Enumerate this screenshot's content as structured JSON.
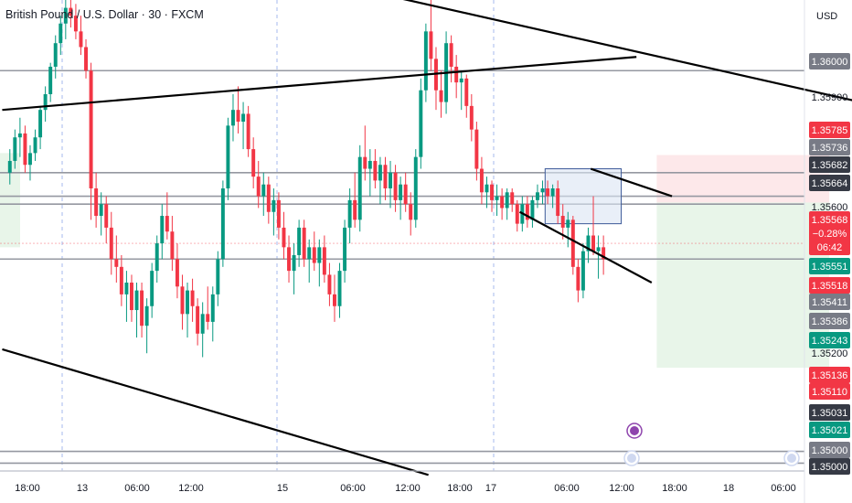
{
  "header": {
    "title": "British Pound / U.S. Dollar · 30 · FXCM",
    "currency": "USD"
  },
  "colors": {
    "up": "#089981",
    "down": "#f23645",
    "trendline": "#000000",
    "hline": "#9598a1",
    "box_border": "#3d5a99",
    "box_fill": "#dbe4f4",
    "target_zone": "#e8f5e9",
    "stop_zone": "#fde8ea",
    "left_zone": "#e8f5e9",
    "session_line": "#6a8de0"
  },
  "chart_data": {
    "type": "candlestick",
    "symbol": "GBPUSD",
    "timeframe": "30",
    "x_ticks": [
      "18:00",
      "13",
      "06:00",
      "12:00",
      "15",
      "06:00",
      "12:00",
      "18:00",
      "17",
      "06:00",
      "12:00",
      "18:00",
      "18",
      "06:00"
    ],
    "y_ticks": [
      1.35,
      1.352,
      1.356,
      1.359,
      1.36
    ],
    "y_range": [
      1.3498,
      1.3618
    ],
    "horizontal_levels": [
      1.36,
      1.3574,
      1.3568,
      1.3566,
      1.3552,
      1.3503,
      1.35,
      1.3498
    ],
    "price_labels": [
      {
        "text": "1.36000",
        "kind": "gray"
      },
      {
        "text": "1.35900",
        "kind": "plain"
      },
      {
        "text": "1.35785",
        "kind": "red"
      },
      {
        "text": "1.35736",
        "kind": "gray"
      },
      {
        "text": "1.35682",
        "kind": "dark"
      },
      {
        "text": "1.35664",
        "kind": "dark"
      },
      {
        "text": "1.35600",
        "kind": "plain"
      },
      {
        "text": "1.35568",
        "kind": "red"
      },
      {
        "text": "−0.28%",
        "kind": "red"
      },
      {
        "text": "06:42",
        "kind": "red"
      },
      {
        "text": "1.35551",
        "kind": "green"
      },
      {
        "text": "1.35518",
        "kind": "red"
      },
      {
        "text": "1.35411",
        "kind": "gray"
      },
      {
        "text": "1.35386",
        "kind": "gray"
      },
      {
        "text": "1.35243",
        "kind": "green"
      },
      {
        "text": "1.35200",
        "kind": "plain"
      },
      {
        "text": "1.35136",
        "kind": "red"
      },
      {
        "text": "1.35110",
        "kind": "red"
      },
      {
        "text": "1.35031",
        "kind": "dark"
      },
      {
        "text": "1.35021",
        "kind": "green"
      },
      {
        "text": "1.35000",
        "kind": "gray"
      },
      {
        "text": "1.35000",
        "kind": "dark"
      }
    ],
    "candles": [
      [
        1.3574,
        1.358,
        1.3571,
        1.3577
      ],
      [
        1.3577,
        1.3585,
        1.3575,
        1.3583
      ],
      [
        1.3583,
        1.3588,
        1.3578,
        1.3584
      ],
      [
        1.3584,
        1.3586,
        1.3574,
        1.3576
      ],
      [
        1.3576,
        1.3581,
        1.3572,
        1.3579
      ],
      [
        1.3579,
        1.3585,
        1.3577,
        1.3583
      ],
      [
        1.3583,
        1.3591,
        1.358,
        1.359
      ],
      [
        1.359,
        1.3596,
        1.3587,
        1.3594
      ],
      [
        1.3594,
        1.3602,
        1.3592,
        1.3601
      ],
      [
        1.3601,
        1.3609,
        1.3598,
        1.3607
      ],
      [
        1.3607,
        1.3614,
        1.3604,
        1.3612
      ],
      [
        1.3612,
        1.3618,
        1.3608,
        1.3616
      ],
      [
        1.3616,
        1.3618,
        1.3611,
        1.3614
      ],
      [
        1.3614,
        1.3617,
        1.3608,
        1.361
      ],
      [
        1.361,
        1.3614,
        1.3604,
        1.3606
      ],
      [
        1.3606,
        1.3608,
        1.3598,
        1.36
      ],
      [
        1.36,
        1.3602,
        1.3562,
        1.357
      ],
      [
        1.357,
        1.3574,
        1.356,
        1.3563
      ],
      [
        1.3563,
        1.3569,
        1.3558,
        1.3566
      ],
      [
        1.3566,
        1.3568,
        1.3556,
        1.356
      ],
      [
        1.356,
        1.3564,
        1.3548,
        1.3552
      ],
      [
        1.3552,
        1.3558,
        1.3546,
        1.355
      ],
      [
        1.355,
        1.3553,
        1.354,
        1.3543
      ],
      [
        1.3543,
        1.3549,
        1.3536,
        1.3546
      ],
      [
        1.3546,
        1.3548,
        1.3536,
        1.3539
      ],
      [
        1.3539,
        1.3546,
        1.3532,
        1.3544
      ],
      [
        1.3544,
        1.3546,
        1.3532,
        1.3535
      ],
      [
        1.3535,
        1.3542,
        1.3528,
        1.354
      ],
      [
        1.354,
        1.3551,
        1.3537,
        1.3549
      ],
      [
        1.3549,
        1.3558,
        1.3546,
        1.3556
      ],
      [
        1.3556,
        1.3566,
        1.3552,
        1.3563
      ],
      [
        1.3563,
        1.3569,
        1.3557,
        1.3559
      ],
      [
        1.3559,
        1.3563,
        1.3549,
        1.3552
      ],
      [
        1.3552,
        1.3556,
        1.3542,
        1.3545
      ],
      [
        1.3545,
        1.3548,
        1.3534,
        1.3538
      ],
      [
        1.3538,
        1.3546,
        1.3532,
        1.3544
      ],
      [
        1.3544,
        1.3547,
        1.3536,
        1.354
      ],
      [
        1.354,
        1.3542,
        1.353,
        1.3533
      ],
      [
        1.3533,
        1.3541,
        1.3527,
        1.3538
      ],
      [
        1.3538,
        1.3545,
        1.3534,
        1.3536
      ],
      [
        1.3536,
        1.3545,
        1.3531,
        1.3543
      ],
      [
        1.3543,
        1.3554,
        1.354,
        1.3552
      ],
      [
        1.3552,
        1.3572,
        1.355,
        1.357
      ],
      [
        1.357,
        1.3588,
        1.3567,
        1.3586
      ],
      [
        1.3586,
        1.3594,
        1.3582,
        1.359
      ],
      [
        1.359,
        1.3596,
        1.3584,
        1.3587
      ],
      [
        1.3587,
        1.3592,
        1.358,
        1.3589
      ],
      [
        1.3589,
        1.3591,
        1.3578,
        1.358
      ],
      [
        1.358,
        1.3583,
        1.357,
        1.3573
      ],
      [
        1.3573,
        1.3577,
        1.3565,
        1.3568
      ],
      [
        1.3568,
        1.3574,
        1.3563,
        1.3571
      ],
      [
        1.3571,
        1.3573,
        1.3561,
        1.3564
      ],
      [
        1.3564,
        1.357,
        1.3558,
        1.3567
      ],
      [
        1.3567,
        1.3569,
        1.3557,
        1.356
      ],
      [
        1.356,
        1.3564,
        1.3552,
        1.3555
      ],
      [
        1.3555,
        1.3558,
        1.3546,
        1.3549
      ],
      [
        1.3549,
        1.3556,
        1.3543,
        1.3553
      ],
      [
        1.3553,
        1.3562,
        1.355,
        1.356
      ],
      [
        1.356,
        1.3562,
        1.355,
        1.3552
      ],
      [
        1.3552,
        1.3557,
        1.3546,
        1.3555
      ],
      [
        1.3555,
        1.3559,
        1.3549,
        1.3551
      ],
      [
        1.3551,
        1.3557,
        1.3545,
        1.3555
      ],
      [
        1.3555,
        1.3558,
        1.3546,
        1.3548
      ],
      [
        1.3548,
        1.3551,
        1.354,
        1.3543
      ],
      [
        1.3543,
        1.3548,
        1.3536,
        1.354
      ],
      [
        1.354,
        1.3551,
        1.3537,
        1.3549
      ],
      [
        1.3549,
        1.3562,
        1.3546,
        1.356
      ],
      [
        1.356,
        1.357,
        1.3556,
        1.3567
      ],
      [
        1.3567,
        1.3574,
        1.356,
        1.3562
      ],
      [
        1.3562,
        1.3581,
        1.3559,
        1.3578
      ],
      [
        1.3578,
        1.3586,
        1.3572,
        1.3575
      ],
      [
        1.3575,
        1.358,
        1.3568,
        1.3577
      ],
      [
        1.3577,
        1.358,
        1.357,
        1.3572
      ],
      [
        1.3572,
        1.3578,
        1.3566,
        1.3576
      ],
      [
        1.3576,
        1.3578,
        1.3567,
        1.357
      ],
      [
        1.357,
        1.3577,
        1.3565,
        1.3574
      ],
      [
        1.3574,
        1.3576,
        1.3564,
        1.3567
      ],
      [
        1.3567,
        1.3573,
        1.3562,
        1.3571
      ],
      [
        1.3571,
        1.3574,
        1.3564,
        1.3566
      ],
      [
        1.3566,
        1.3569,
        1.3558,
        1.3562
      ],
      [
        1.3562,
        1.358,
        1.356,
        1.3578
      ],
      [
        1.3578,
        1.3598,
        1.3575,
        1.3595
      ],
      [
        1.3595,
        1.3612,
        1.3592,
        1.361
      ],
      [
        1.361,
        1.3618,
        1.36,
        1.3603
      ],
      [
        1.3603,
        1.3606,
        1.359,
        1.3595
      ],
      [
        1.3595,
        1.36,
        1.3588,
        1.3592
      ],
      [
        1.3592,
        1.361,
        1.3589,
        1.3607
      ],
      [
        1.3607,
        1.3609,
        1.3597,
        1.3601
      ],
      [
        1.3601,
        1.3604,
        1.3593,
        1.3597
      ],
      [
        1.3597,
        1.36,
        1.359,
        1.3598
      ],
      [
        1.3598,
        1.3599,
        1.3588,
        1.3591
      ],
      [
        1.3591,
        1.3594,
        1.3582,
        1.3585
      ],
      [
        1.3585,
        1.3587,
        1.3572,
        1.3575
      ],
      [
        1.3575,
        1.3578,
        1.3566,
        1.3569
      ],
      [
        1.3569,
        1.3573,
        1.3565,
        1.3571
      ],
      [
        1.3571,
        1.3572,
        1.3564,
        1.3567
      ],
      [
        1.3567,
        1.3571,
        1.3563,
        1.3568
      ],
      [
        1.3568,
        1.357,
        1.3562,
        1.3565
      ],
      [
        1.3565,
        1.357,
        1.3562,
        1.3569
      ],
      [
        1.3569,
        1.357,
        1.3564,
        1.3566
      ],
      [
        1.3566,
        1.3567,
        1.3559,
        1.3561
      ],
      [
        1.3561,
        1.3568,
        1.3559,
        1.3566
      ],
      [
        1.3566,
        1.3568,
        1.356,
        1.3562
      ],
      [
        1.3562,
        1.3568,
        1.356,
        1.3567
      ],
      [
        1.3567,
        1.3571,
        1.3565,
        1.3569
      ],
      [
        1.3569,
        1.3572,
        1.3566,
        1.357
      ],
      [
        1.357,
        1.3572,
        1.3566,
        1.3568
      ],
      [
        1.3568,
        1.3571,
        1.3565,
        1.357
      ],
      [
        1.357,
        1.3572,
        1.3561,
        1.3563
      ],
      [
        1.3563,
        1.3566,
        1.3557,
        1.356
      ],
      [
        1.356,
        1.3564,
        1.3555,
        1.3562
      ],
      [
        1.3562,
        1.3563,
        1.3548,
        1.355
      ],
      [
        1.355,
        1.3552,
        1.3541,
        1.3544
      ],
      [
        1.3544,
        1.3556,
        1.3542,
        1.3554
      ],
      [
        1.3554,
        1.356,
        1.3551,
        1.3558
      ],
      [
        1.3558,
        1.3568,
        1.3553,
        1.3554
      ],
      [
        1.3554,
        1.3558,
        1.3547,
        1.3555
      ],
      [
        1.3555,
        1.3558,
        1.3548,
        1.3552
      ]
    ],
    "annotations": {
      "trendlines": [
        {
          "from": {
            "bar": -1,
            "price": 1.359
          },
          "to": {
            "bar": 124,
            "price": 1.36035
          }
        },
        {
          "from": {
            "bar": 72,
            "price": 1.362
          },
          "to": {
            "bar": 175,
            "price": 1.359
          }
        },
        {
          "from": {
            "bar": -1,
            "price": 1.3529
          },
          "to": {
            "bar": 83,
            "price": 1.3497
          }
        },
        {
          "from": {
            "bar": 101,
            "price": 1.3564
          },
          "to": {
            "bar": 127,
            "price": 1.3546
          }
        },
        {
          "from": {
            "bar": 115,
            "price": 1.3575
          },
          "to": {
            "bar": 131,
            "price": 1.3568
          }
        }
      ],
      "rectangle": {
        "bar_start": 106,
        "bar_end": 121,
        "price_top": 1.3575,
        "price_bottom": 1.3561
      },
      "position": {
        "bar_start": 128,
        "bar_end": 162,
        "entry": 1.35664,
        "stop": 1.35785,
        "target": 1.35243
      }
    }
  }
}
